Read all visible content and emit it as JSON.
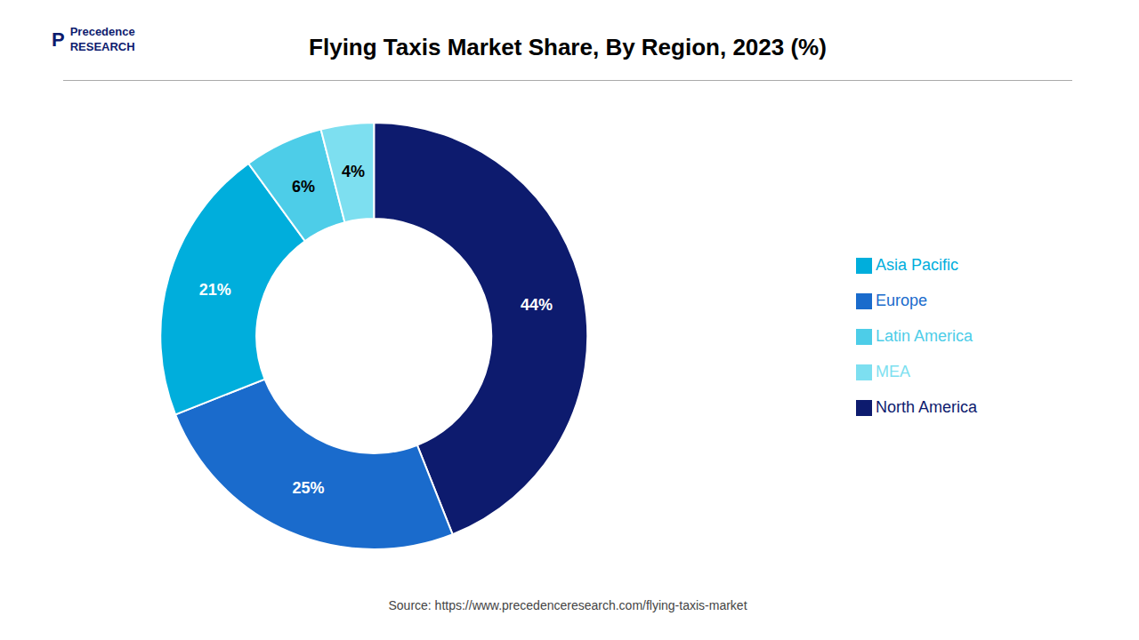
{
  "chart_data": {
    "type": "pie",
    "title": "Flying Taxis Market Share, By Region, 2023 (%)",
    "categories": [
      "North America",
      "Europe",
      "Asia Pacific",
      "Latin America",
      "MEA"
    ],
    "values": [
      44,
      25,
      21,
      6,
      4
    ],
    "value_labels": [
      "44%",
      "25%",
      "21%",
      "6%",
      "4%"
    ],
    "colors": [
      "#0d1b6e",
      "#1a6bcc",
      "#00aedc",
      "#4dcde8",
      "#7ddff0"
    ],
    "data_labels": true,
    "legend": "right",
    "annotations": [
      "P",
      "Precedence\nRESEARCH",
      "Source: https://www.precedenceresearch.com/flying-taxis-market"
    ]
  }
}
